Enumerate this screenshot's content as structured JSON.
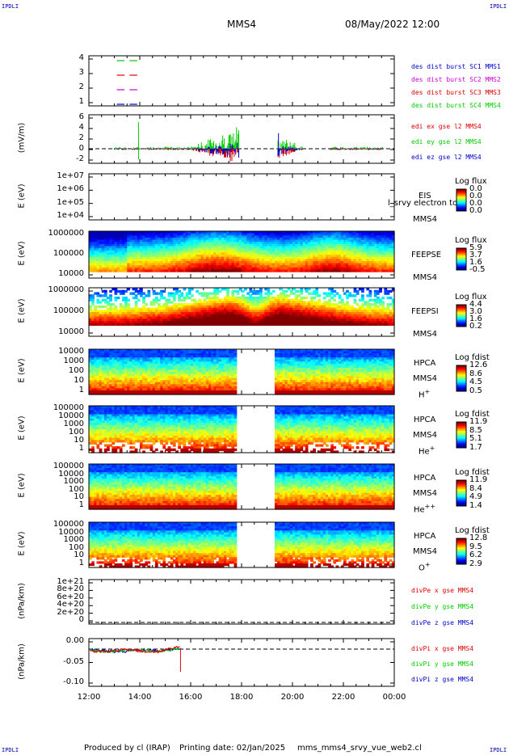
{
  "header": {
    "corner_label": "IPDLI",
    "spacecraft": "MMS4",
    "datetime": "08/May/2022 12:00"
  },
  "footer": {
    "produced_by": "Produced by cl (IRAP)",
    "printing_date": "Printing date: 02/Jan/2025",
    "filename": "mms_mms4_srvy_vue_web2.cl"
  },
  "colors": {
    "mms1": "#0000cc",
    "mms2": "#cc00cc",
    "mms3": "#dd0000",
    "mms4": "#00cc00",
    "x": "#dd0000",
    "y": "#00cc00",
    "z": "#0000cc"
  },
  "x_ticks": [
    "12:00",
    "14:00",
    "16:00",
    "18:00",
    "20:00",
    "22:00",
    "00:00"
  ],
  "chart_data": [
    {
      "type": "line",
      "id": "burst",
      "yticks": [
        "4",
        "3",
        "2",
        "1"
      ],
      "ylim": [
        0.5,
        4.5
      ],
      "legend": [
        "des dist burst SC1 MMS1",
        "des dist burst SC2 MMS2",
        "des dist burst SC3 MMS3",
        "des dist burst SC4 MMS4"
      ],
      "series": [
        {
          "spacecraft": 4,
          "y": 4,
          "intervals": [
            [
              13.1,
              13.4
            ],
            [
              13.6,
              13.9
            ]
          ]
        },
        {
          "spacecraft": 3,
          "y": 3,
          "intervals": [
            [
              13.1,
              13.4
            ],
            [
              13.6,
              13.9
            ]
          ]
        },
        {
          "spacecraft": 2,
          "y": 2,
          "intervals": [
            [
              13.1,
              13.4
            ],
            [
              13.6,
              13.9
            ]
          ]
        },
        {
          "spacecraft": 1,
          "y": 1,
          "intervals": [
            [
              13.1,
              13.4
            ],
            [
              13.6,
              13.9
            ]
          ]
        }
      ]
    },
    {
      "type": "line",
      "id": "efield",
      "ylabel": "(mV/m)",
      "yticks": [
        "6",
        "4",
        "2",
        "0",
        "-2"
      ],
      "ylim": [
        -3,
        7
      ],
      "legend": [
        "edi ex gse l2 MMS4",
        "edi ey gse l2 MMS4",
        "edi ez gse l2 MMS4"
      ]
    },
    {
      "type": "heatmap",
      "id": "eis",
      "ylabel": "E (eV)",
      "yticks": [
        "1e+07",
        "1e+06",
        "1e+05",
        "1e+04"
      ],
      "label": "EIS",
      "label2": "MMS4",
      "overlay_text": "l_srvy electron to",
      "cb_title": "Log flux",
      "cb_values": [
        "0.0",
        "0.0",
        "0.0",
        "0.0"
      ]
    },
    {
      "type": "heatmap",
      "id": "feepse",
      "ylabel": "E (eV)",
      "yticks": [
        "1000000",
        "100000",
        "10000"
      ],
      "label": "FEEPSE",
      "label2": "MMS4",
      "cb_title": "Log flux",
      "cb_values": [
        "5.9",
        "3.7",
        "1.6",
        "-0.5"
      ]
    },
    {
      "type": "heatmap",
      "id": "feepsi",
      "ylabel": "E (eV)",
      "yticks": [
        "1000000",
        "100000",
        "10000"
      ],
      "label": "FEEPSI",
      "label2": "MMS4",
      "cb_title": "Log flux",
      "cb_values": [
        "4.4",
        "3.0",
        "1.6",
        "0.2"
      ]
    },
    {
      "type": "heatmap",
      "id": "hpca_h",
      "ylabel": "E (eV)",
      "yticks": [
        "10000",
        "1000",
        "100",
        "10",
        "1"
      ],
      "label": "HPCA",
      "label2": "MMS4",
      "species": "H",
      "charge": "+",
      "cb_title": "Log fdist",
      "cb_values": [
        "12.6",
        "8.6",
        "4.5",
        "0.5"
      ]
    },
    {
      "type": "heatmap",
      "id": "hpca_he1",
      "ylabel": "E (eV)",
      "yticks": [
        "100000",
        "10000",
        "1000",
        "100",
        "10",
        "1"
      ],
      "label": "HPCA",
      "label2": "MMS4",
      "species": "He",
      "charge": "+",
      "cb_title": "Log fdist",
      "cb_values": [
        "11.9",
        "8.5",
        "5.1",
        "1.7"
      ]
    },
    {
      "type": "heatmap",
      "id": "hpca_he2",
      "ylabel": "E (eV)",
      "yticks": [
        "100000",
        "10000",
        "1000",
        "100",
        "10",
        "1"
      ],
      "label": "HPCA",
      "label2": "MMS4",
      "species": "He",
      "charge": "++",
      "cb_title": "Log fdist",
      "cb_values": [
        "11.9",
        "8.4",
        "4.9",
        "1.4"
      ]
    },
    {
      "type": "heatmap",
      "id": "hpca_o",
      "ylabel": "E (eV)",
      "yticks": [
        "100000",
        "10000",
        "1000",
        "100",
        "10",
        "1"
      ],
      "label": "HPCA",
      "label2": "MMS4",
      "species": "O",
      "charge": "+",
      "cb_title": "Log fdist",
      "cb_values": [
        "12.8",
        "9.5",
        "6.2",
        "2.9"
      ]
    },
    {
      "type": "line",
      "id": "divpe",
      "ylabel": "(nPa/km)",
      "yticks": [
        "1e+21",
        "8e+20",
        "6e+20",
        "4e+20",
        "2e+20",
        "0"
      ],
      "ylim": [
        -5e+19,
        1.05e+21
      ],
      "legend": [
        "divPe x gse MMS4",
        "divPe y gse MMS4",
        "divPe z gse MMS4"
      ]
    },
    {
      "type": "line",
      "id": "divpi",
      "ylabel": "(nPa/km)",
      "yticks": [
        "0.00",
        "-0.05",
        "-0.10"
      ],
      "ylim": [
        -0.12,
        0.02
      ],
      "legend": [
        "divPi x gse MMS4",
        "divPi y gse MMS4",
        "divPi z gse MMS4"
      ]
    }
  ]
}
